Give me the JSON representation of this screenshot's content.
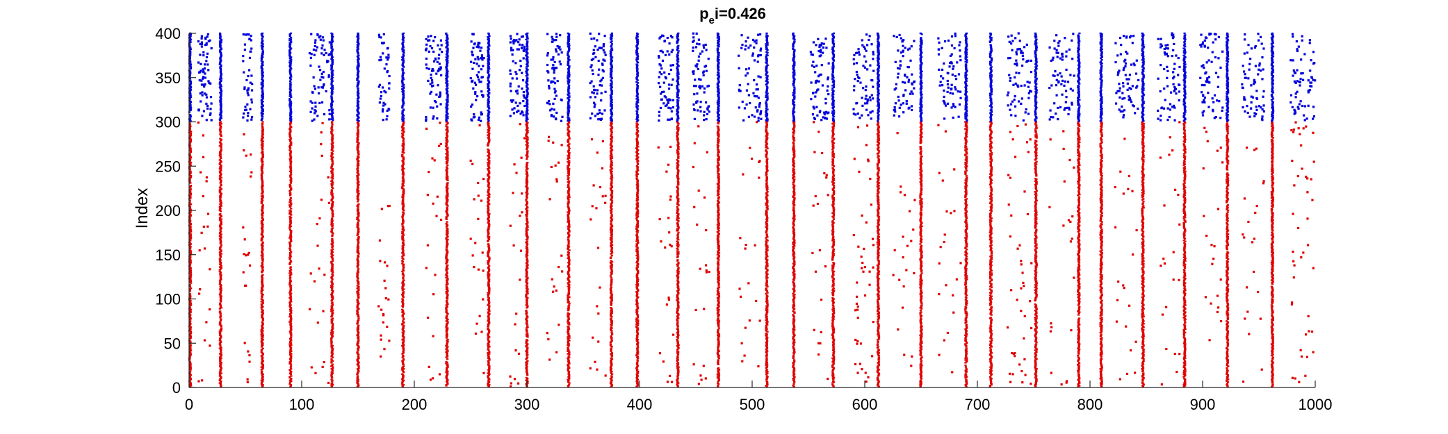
{
  "chart_data": {
    "type": "scatter",
    "title": {
      "base": "p",
      "subscript": "e",
      "rest": "i=0.426"
    },
    "xlabel": "",
    "ylabel": "Index",
    "xlim": [
      0,
      1000
    ],
    "ylim": [
      0,
      400
    ],
    "xticks": [
      0,
      100,
      200,
      300,
      400,
      500,
      600,
      700,
      800,
      900,
      1000
    ],
    "yticks": [
      0,
      50,
      100,
      150,
      200,
      250,
      300,
      350,
      400
    ],
    "grid": false,
    "colors": {
      "excitatory": "#e00000",
      "inhibitory": "#0000dd"
    },
    "populations": [
      {
        "key": "excitatory",
        "index_range": [
          1,
          300
        ]
      },
      {
        "key": "inhibitory",
        "index_range": [
          301,
          400
        ]
      }
    ],
    "burst_times": [
      1,
      28,
      65,
      90,
      127,
      150,
      190,
      229,
      266,
      300,
      337,
      375,
      398,
      434,
      470,
      513,
      537,
      572,
      612,
      650,
      690,
      712,
      752,
      790,
      810,
      847,
      884,
      922,
      962
    ],
    "scatter_clusters": [
      {
        "x_range": [
          8,
          20
        ],
        "red_density": "low",
        "blue_density": "high"
      },
      {
        "x_range": [
          48,
          56
        ],
        "red_density": "low",
        "blue_density": "medium"
      },
      {
        "x_range": [
          107,
          125
        ],
        "red_density": "low",
        "blue_density": "high"
      },
      {
        "x_range": [
          168,
          178
        ],
        "red_density": "low",
        "blue_density": "medium"
      },
      {
        "x_range": [
          210,
          225
        ],
        "red_density": "low",
        "blue_density": "high"
      },
      {
        "x_range": [
          250,
          262
        ],
        "red_density": "low",
        "blue_density": "high"
      },
      {
        "x_range": [
          285,
          298
        ],
        "red_density": "low",
        "blue_density": "high"
      },
      {
        "x_range": [
          318,
          332
        ],
        "red_density": "low",
        "blue_density": "high"
      },
      {
        "x_range": [
          356,
          370
        ],
        "red_density": "low",
        "blue_density": "high"
      },
      {
        "x_range": [
          416,
          430
        ],
        "red_density": "low",
        "blue_density": "high"
      },
      {
        "x_range": [
          447,
          462
        ],
        "red_density": "low",
        "blue_density": "high"
      },
      {
        "x_range": [
          488,
          508
        ],
        "red_density": "low",
        "blue_density": "high"
      },
      {
        "x_range": [
          552,
          568
        ],
        "red_density": "low",
        "blue_density": "high"
      },
      {
        "x_range": [
          590,
          608
        ],
        "red_density": "medium",
        "blue_density": "high"
      },
      {
        "x_range": [
          625,
          645
        ],
        "red_density": "low",
        "blue_density": "high"
      },
      {
        "x_range": [
          665,
          686
        ],
        "red_density": "low",
        "blue_density": "high"
      },
      {
        "x_range": [
          726,
          748
        ],
        "red_density": "medium",
        "blue_density": "high"
      },
      {
        "x_range": [
          764,
          786
        ],
        "red_density": "low",
        "blue_density": "high"
      },
      {
        "x_range": [
          822,
          843
        ],
        "red_density": "low",
        "blue_density": "high"
      },
      {
        "x_range": [
          860,
          880
        ],
        "red_density": "low",
        "blue_density": "high"
      },
      {
        "x_range": [
          898,
          918
        ],
        "red_density": "low",
        "blue_density": "high"
      },
      {
        "x_range": [
          935,
          955
        ],
        "red_density": "low",
        "blue_density": "high"
      },
      {
        "x_range": [
          978,
          1000
        ],
        "red_density": "medium",
        "blue_density": "high"
      }
    ]
  }
}
